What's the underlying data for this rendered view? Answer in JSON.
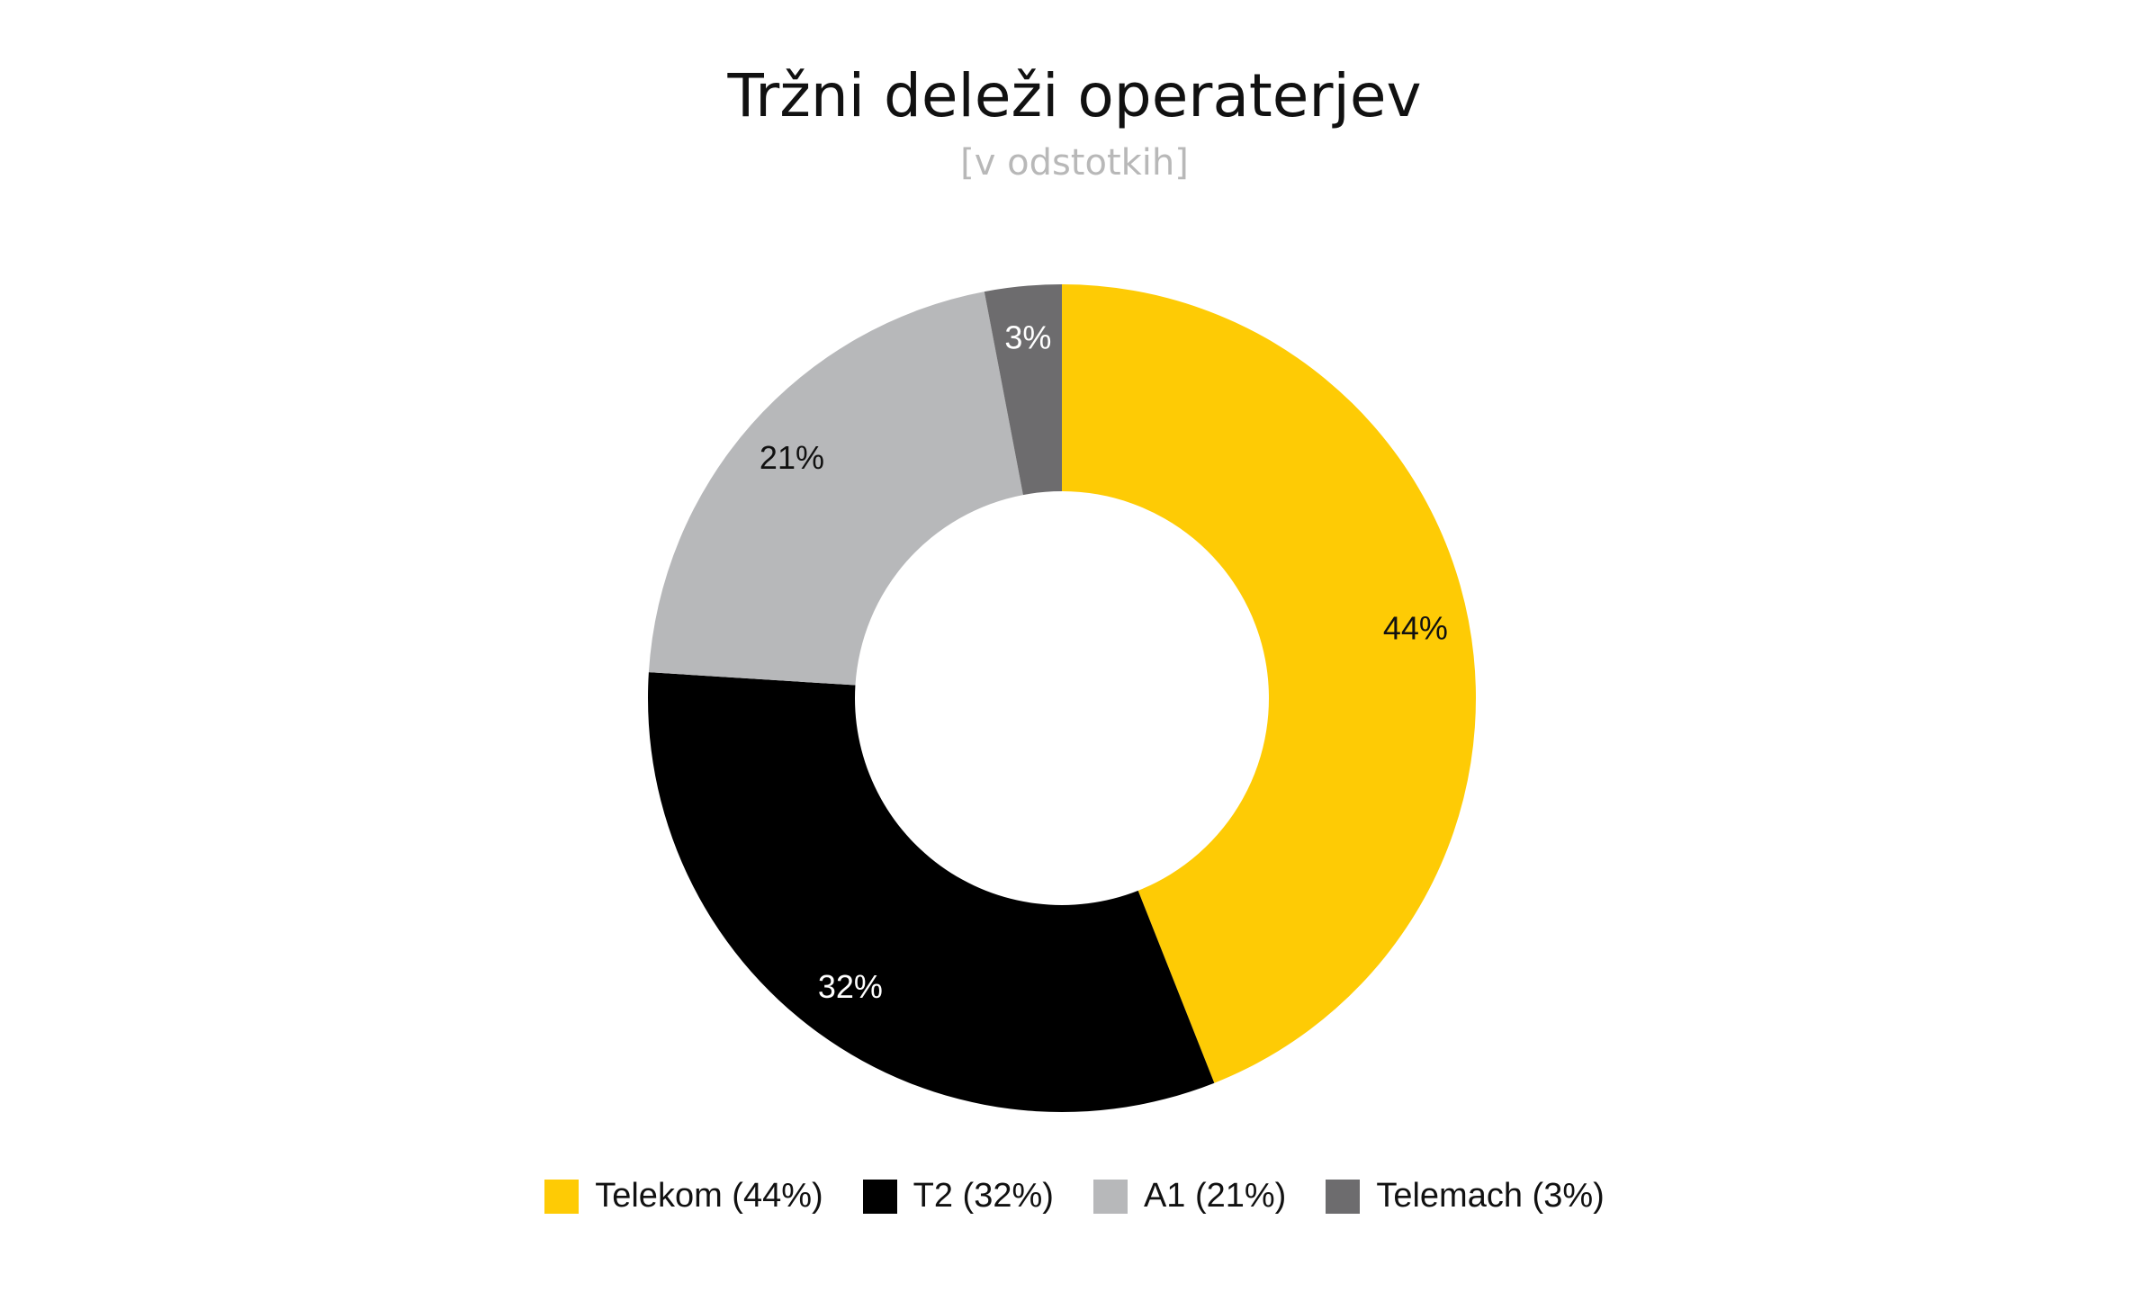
{
  "chart_data": {
    "type": "pie",
    "variant": "donut",
    "title": "Tržni deleži operaterjev",
    "subtitle": "[v odstotkih]",
    "legend_position": "bottom",
    "categories": [
      "Telekom",
      "T2",
      "A1",
      "Telemach"
    ],
    "values": [
      44,
      32,
      21,
      3
    ],
    "unit": "%",
    "slice_labels": [
      "44%",
      "32%",
      "21%",
      "3%"
    ],
    "label_colors": [
      "#111111",
      "#ffffff",
      "#111111",
      "#ffffff"
    ],
    "colors": [
      "#fecb05",
      "#000000",
      "#b7b8ba",
      "#6d6c6e"
    ],
    "legend": [
      {
        "label": "Telekom (44%)",
        "color": "#fecb05"
      },
      {
        "label": "T2 (32%)",
        "color": "#000000"
      },
      {
        "label": "A1 (21%)",
        "color": "#b7b8ba"
      },
      {
        "label": "Telemach (3%)",
        "color": "#6d6c6e"
      }
    ]
  }
}
